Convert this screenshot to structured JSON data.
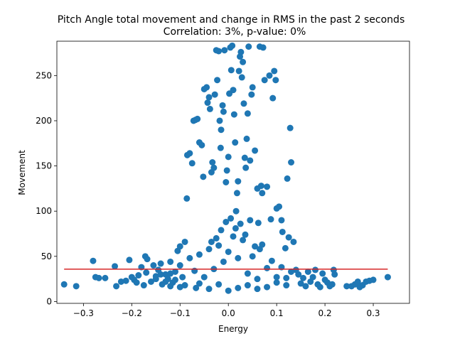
{
  "chart_data": {
    "type": "scatter",
    "title": "Pitch Angle total movement and change in RMS in the past 2 seconds",
    "subtitle": "Correlation: 3%, p-value: 0%",
    "xlabel": "Energy",
    "ylabel": "Movement",
    "xlim": [
      -0.355,
      0.375
    ],
    "ylim": [
      -2,
      288
    ],
    "x_ticks": [
      -0.3,
      -0.2,
      -0.1,
      0.0,
      0.1,
      0.2,
      0.3
    ],
    "x_tick_labels": [
      "−0.3",
      "−0.2",
      "−0.1",
      "0.0",
      "0.1",
      "0.2",
      "0.3"
    ],
    "y_ticks": [
      0,
      50,
      100,
      150,
      200,
      250
    ],
    "y_tick_labels": [
      "0",
      "50",
      "100",
      "150",
      "200",
      "250"
    ],
    "grid": false,
    "point_color": "#1f77b4",
    "line_color": "#d62728",
    "fit_line": {
      "x": [
        -0.34,
        0.33
      ],
      "y": [
        35.8,
        35.8
      ]
    },
    "points": [
      [
        -0.34,
        19
      ],
      [
        -0.315,
        17
      ],
      [
        -0.28,
        45
      ],
      [
        -0.275,
        27
      ],
      [
        -0.268,
        26
      ],
      [
        -0.255,
        26
      ],
      [
        -0.235,
        39
      ],
      [
        -0.232,
        17
      ],
      [
        -0.222,
        22
      ],
      [
        -0.212,
        23
      ],
      [
        -0.205,
        46
      ],
      [
        -0.2,
        27
      ],
      [
        -0.195,
        24
      ],
      [
        -0.19,
        21
      ],
      [
        -0.186,
        29
      ],
      [
        -0.18,
        38
      ],
      [
        -0.175,
        18
      ],
      [
        -0.17,
        32
      ],
      [
        -0.172,
        50
      ],
      [
        -0.168,
        47
      ],
      [
        -0.16,
        22
      ],
      [
        -0.155,
        40
      ],
      [
        -0.15,
        28
      ],
      [
        -0.145,
        35
      ],
      [
        -0.14,
        42
      ],
      [
        -0.137,
        19
      ],
      [
        -0.13,
        30
      ],
      [
        -0.125,
        25
      ],
      [
        -0.12,
        44
      ],
      [
        -0.115,
        21
      ],
      [
        -0.11,
        33
      ],
      [
        -0.105,
        56
      ],
      [
        -0.1,
        61
      ],
      [
        -0.095,
        27
      ],
      [
        -0.09,
        66
      ],
      [
        -0.086,
        114
      ],
      [
        -0.085,
        162
      ],
      [
        -0.08,
        164
      ],
      [
        -0.075,
        153
      ],
      [
        -0.072,
        200
      ],
      [
        -0.068,
        201
      ],
      [
        -0.067,
        15
      ],
      [
        -0.064,
        202
      ],
      [
        -0.06,
        176
      ],
      [
        -0.055,
        173
      ],
      [
        -0.052,
        138
      ],
      [
        -0.05,
        235
      ],
      [
        -0.045,
        237
      ],
      [
        -0.043,
        220
      ],
      [
        -0.04,
        226
      ],
      [
        -0.038,
        213
      ],
      [
        -0.035,
        143
      ],
      [
        -0.033,
        154
      ],
      [
        -0.03,
        148
      ],
      [
        -0.028,
        229
      ],
      [
        -0.025,
        278
      ],
      [
        -0.023,
        245
      ],
      [
        -0.02,
        277
      ],
      [
        -0.018,
        200
      ],
      [
        -0.016,
        170
      ],
      [
        -0.015,
        190
      ],
      [
        -0.012,
        217
      ],
      [
        -0.01,
        210
      ],
      [
        -0.008,
        278
      ],
      [
        -0.005,
        132
      ],
      [
        -0.003,
        145
      ],
      [
        0.0,
        160
      ],
      [
        0.002,
        230
      ],
      [
        0.004,
        281
      ],
      [
        0.006,
        256
      ],
      [
        0.008,
        283
      ],
      [
        0.01,
        234
      ],
      [
        0.012,
        207
      ],
      [
        0.014,
        176
      ],
      [
        0.016,
        100
      ],
      [
        0.018,
        120
      ],
      [
        0.02,
        133
      ],
      [
        0.022,
        255
      ],
      [
        0.024,
        271
      ],
      [
        0.026,
        276
      ],
      [
        0.028,
        248
      ],
      [
        0.03,
        265
      ],
      [
        0.032,
        219
      ],
      [
        0.034,
        159
      ],
      [
        0.036,
        148
      ],
      [
        0.038,
        180
      ],
      [
        0.04,
        208
      ],
      [
        0.042,
        282
      ],
      [
        0.045,
        156
      ],
      [
        0.048,
        229
      ],
      [
        0.05,
        237
      ],
      [
        0.055,
        167
      ],
      [
        0.06,
        125
      ],
      [
        0.062,
        87
      ],
      [
        0.065,
        282
      ],
      [
        0.068,
        128
      ],
      [
        0.07,
        120
      ],
      [
        0.072,
        281
      ],
      [
        0.075,
        245
      ],
      [
        0.08,
        127
      ],
      [
        0.085,
        250
      ],
      [
        0.088,
        91
      ],
      [
        0.092,
        225
      ],
      [
        0.095,
        255
      ],
      [
        0.098,
        245
      ],
      [
        0.1,
        103
      ],
      [
        0.105,
        105
      ],
      [
        0.11,
        90
      ],
      [
        0.112,
        77
      ],
      [
        0.118,
        59
      ],
      [
        0.122,
        136
      ],
      [
        0.125,
        71
      ],
      [
        0.128,
        192
      ],
      [
        0.13,
        154
      ],
      [
        0.135,
        66
      ],
      [
        0.14,
        35
      ],
      [
        0.145,
        30
      ],
      [
        0.15,
        20
      ],
      [
        0.155,
        26
      ],
      [
        0.16,
        17
      ],
      [
        0.165,
        33
      ],
      [
        0.17,
        22
      ],
      [
        0.175,
        27
      ],
      [
        0.18,
        35
      ],
      [
        0.185,
        19
      ],
      [
        0.19,
        16
      ],
      [
        0.195,
        31
      ],
      [
        0.2,
        24
      ],
      [
        0.205,
        21
      ],
      [
        0.21,
        17
      ],
      [
        0.215,
        19
      ],
      [
        0.22,
        30
      ],
      [
        0.218,
        35
      ],
      [
        0.245,
        17
      ],
      [
        0.255,
        17
      ],
      [
        0.262,
        19
      ],
      [
        0.268,
        22
      ],
      [
        0.272,
        16
      ],
      [
        0.278,
        18
      ],
      [
        0.285,
        22
      ],
      [
        0.292,
        23
      ],
      [
        0.3,
        24
      ],
      [
        0.33,
        27
      ],
      [
        -0.15,
        25
      ],
      [
        -0.14,
        30
      ],
      [
        -0.13,
        22
      ],
      [
        -0.12,
        31
      ],
      [
        -0.11,
        24
      ],
      [
        -0.1,
        40
      ],
      [
        -0.09,
        18
      ],
      [
        -0.08,
        48
      ],
      [
        -0.07,
        34
      ],
      [
        -0.06,
        52
      ],
      [
        -0.05,
        27
      ],
      [
        -0.04,
        58
      ],
      [
        -0.03,
        36
      ],
      [
        -0.02,
        62
      ],
      [
        -0.01,
        44
      ],
      [
        0.0,
        55
      ],
      [
        0.01,
        72
      ],
      [
        0.02,
        48
      ],
      [
        0.03,
        68
      ],
      [
        0.04,
        31
      ],
      [
        0.05,
        50
      ],
      [
        0.06,
        25
      ],
      [
        0.07,
        63
      ],
      [
        0.08,
        37
      ],
      [
        0.09,
        45
      ],
      [
        0.1,
        21
      ],
      [
        0.11,
        38
      ],
      [
        0.12,
        26
      ],
      [
        0.13,
        33
      ],
      [
        -0.005,
        88
      ],
      [
        0.005,
        92
      ],
      [
        0.015,
        81
      ],
      [
        -0.015,
        79
      ],
      [
        0.025,
        86
      ],
      [
        0.035,
        74
      ],
      [
        0.045,
        90
      ],
      [
        -0.025,
        70
      ],
      [
        -0.035,
        66
      ],
      [
        0.055,
        61
      ],
      [
        0.065,
        58
      ],
      [
        -0.06,
        20
      ],
      [
        -0.04,
        14
      ],
      [
        -0.02,
        19
      ],
      [
        0.0,
        12
      ],
      [
        0.02,
        15
      ],
      [
        0.04,
        18
      ],
      [
        0.06,
        14
      ],
      [
        0.08,
        16
      ],
      [
        0.1,
        27
      ],
      [
        0.12,
        18
      ],
      [
        -0.1,
        16
      ],
      [
        -0.12,
        17
      ]
    ]
  }
}
